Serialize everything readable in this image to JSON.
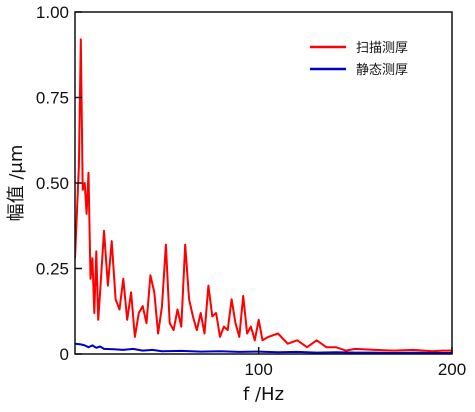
{
  "chart_data": {
    "type": "line",
    "xlabel": "f /Hz",
    "ylabel": "幅值 /μm",
    "xlim": [
      5,
      200
    ],
    "ylim": [
      0,
      1.0
    ],
    "xticks": [
      100,
      200
    ],
    "xtick_labels": [
      "100",
      "200"
    ],
    "yticks": [
      0,
      0.25,
      0.5,
      0.75,
      1.0
    ],
    "ytick_labels": [
      "0",
      "0.25",
      "0.50",
      "0.75",
      "1.00"
    ],
    "grid": false,
    "legend_position": "top-right",
    "series": [
      {
        "name": "扫描测厚",
        "color": "#ff0000",
        "x": [
          5,
          7,
          8,
          9,
          10,
          11,
          12,
          13,
          14,
          15,
          16,
          17,
          18,
          20,
          22,
          24,
          26,
          28,
          30,
          32,
          34,
          36,
          38,
          40,
          42,
          44,
          46,
          48,
          50,
          52,
          54,
          56,
          58,
          60,
          62,
          64,
          66,
          68,
          70,
          72,
          74,
          76,
          78,
          80,
          82,
          84,
          86,
          88,
          90,
          92,
          94,
          96,
          98,
          100,
          102,
          105,
          110,
          115,
          120,
          125,
          130,
          135,
          140,
          145,
          150,
          160,
          170,
          180,
          190,
          195,
          200
        ],
        "y": [
          0.28,
          0.55,
          0.92,
          0.48,
          0.5,
          0.41,
          0.53,
          0.22,
          0.28,
          0.12,
          0.3,
          0.1,
          0.18,
          0.36,
          0.2,
          0.33,
          0.16,
          0.13,
          0.22,
          0.1,
          0.18,
          0.05,
          0.12,
          0.14,
          0.09,
          0.23,
          0.18,
          0.06,
          0.14,
          0.32,
          0.09,
          0.07,
          0.13,
          0.08,
          0.32,
          0.16,
          0.11,
          0.07,
          0.12,
          0.06,
          0.2,
          0.11,
          0.12,
          0.05,
          0.08,
          0.07,
          0.16,
          0.09,
          0.05,
          0.17,
          0.06,
          0.08,
          0.04,
          0.1,
          0.04,
          0.05,
          0.06,
          0.03,
          0.04,
          0.02,
          0.04,
          0.02,
          0.02,
          0.01,
          0.015,
          0.012,
          0.01,
          0.012,
          0.008,
          0.01,
          0.01
        ]
      },
      {
        "name": "静态测厚",
        "color": "#0000cc",
        "x": [
          5,
          8,
          10,
          12,
          14,
          16,
          18,
          20,
          25,
          30,
          35,
          40,
          45,
          50,
          60,
          70,
          80,
          90,
          100,
          110,
          120,
          130,
          140,
          150,
          160,
          170,
          180,
          190,
          200
        ],
        "y": [
          0.03,
          0.028,
          0.025,
          0.02,
          0.025,
          0.018,
          0.022,
          0.015,
          0.014,
          0.012,
          0.015,
          0.01,
          0.012,
          0.008,
          0.009,
          0.007,
          0.008,
          0.006,
          0.007,
          0.005,
          0.006,
          0.004,
          0.005,
          0.004,
          0.004,
          0.003,
          0.004,
          0.003,
          0.003
        ]
      }
    ]
  }
}
